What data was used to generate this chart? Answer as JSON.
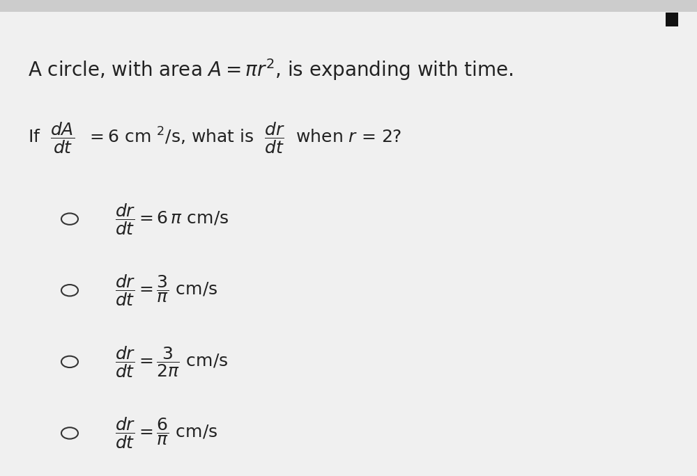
{
  "bg_color": "#f0f0f0",
  "content_bg": "#ffffff",
  "title_line1": "A circle, with area $A = \\pi r^2$, is expanding with time.",
  "question_prefix": "If",
  "question_dAdt": "$\\dfrac{dA}{dt}$",
  "question_mid": "$= 6$ cm $^2$/s, what is",
  "question_drdt": "$\\dfrac{dr}{dt}$",
  "question_end": "when $r$ = 2?",
  "options": [
    "$\\dfrac{dr}{dt} = 6\\,\\pi$ cm/s",
    "$\\dfrac{dr}{dt} = \\dfrac{3}{\\pi}$ cm/s",
    "$\\dfrac{dr}{dt} = \\dfrac{3}{2\\pi}$ cm/s",
    "$\\dfrac{dr}{dt} = \\dfrac{6}{\\pi}$ cm/s"
  ],
  "circle_color": "#333333",
  "text_color": "#222222",
  "title_fontsize": 20,
  "question_fontsize": 18,
  "option_fontsize": 18,
  "top_bar_color": "#cccccc",
  "top_bar_height": 0.025
}
